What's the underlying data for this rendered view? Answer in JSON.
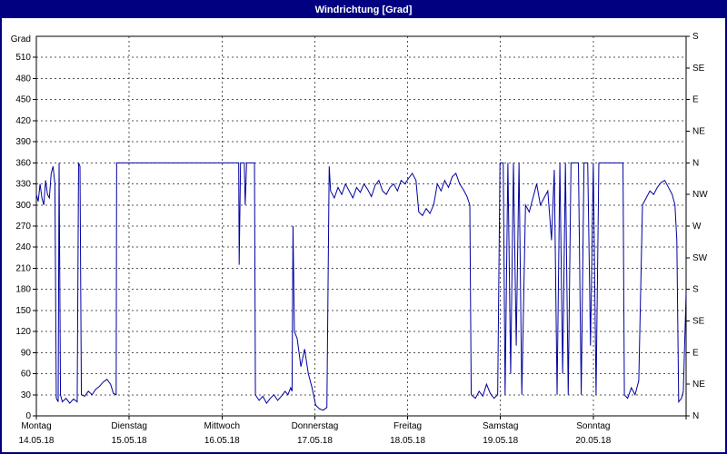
{
  "window": {
    "title": "Windrichtung [Grad]"
  },
  "colors": {
    "titlebar_bg": "#000080",
    "titlebar_text": "#ffffff",
    "frame": "#000080",
    "plot_border": "#000000",
    "grid": "#555555",
    "line": "#0000a0",
    "background": "#ffffff"
  },
  "chart_data": {
    "type": "line",
    "title": "Windrichtung [Grad]",
    "ylabel_left": "Grad",
    "y_min": 0,
    "y_max": 540,
    "left_tick_step": 30,
    "left_tick_labels": [
      "0",
      "30",
      "60",
      "90",
      "120",
      "150",
      "180",
      "210",
      "240",
      "270",
      "300",
      "330",
      "360",
      "390",
      "420",
      "450",
      "480",
      "510"
    ],
    "right_tick_step": 45,
    "right_tick_labels_bottom_to_top": [
      "N",
      "NE",
      "E",
      "SE",
      "S",
      "SW",
      "W",
      "NW",
      "N",
      "NE",
      "E",
      "SE",
      "S"
    ],
    "x_min": 0,
    "x_max": 7,
    "grid": "dashed",
    "x_day_labels": [
      {
        "name": "Montag",
        "date": "14.05.18"
      },
      {
        "name": "Dienstag",
        "date": "15.05.18"
      },
      {
        "name": "Mittwoch",
        "date": "16.05.18"
      },
      {
        "name": "Donnerstag",
        "date": "17.05.18"
      },
      {
        "name": "Freitag",
        "date": "18.05.18"
      },
      {
        "name": "Samstag",
        "date": "19.05.18"
      },
      {
        "name": "Sonntag",
        "date": "20.05.18"
      }
    ],
    "series": [
      {
        "name": "Windrichtung",
        "unit": "Grad",
        "points": [
          [
            0.0,
            315
          ],
          [
            0.02,
            305
          ],
          [
            0.04,
            330
          ],
          [
            0.06,
            310
          ],
          [
            0.08,
            300
          ],
          [
            0.1,
            335
          ],
          [
            0.12,
            315
          ],
          [
            0.14,
            310
          ],
          [
            0.16,
            345
          ],
          [
            0.18,
            355
          ],
          [
            0.2,
            330
          ],
          [
            0.215,
            25
          ],
          [
            0.235,
            20
          ],
          [
            0.245,
            360
          ],
          [
            0.26,
            30
          ],
          [
            0.28,
            20
          ],
          [
            0.32,
            25
          ],
          [
            0.36,
            18
          ],
          [
            0.4,
            24
          ],
          [
            0.44,
            20
          ],
          [
            0.455,
            360
          ],
          [
            0.47,
            355
          ],
          [
            0.485,
            30
          ],
          [
            0.52,
            28
          ],
          [
            0.56,
            35
          ],
          [
            0.6,
            30
          ],
          [
            0.64,
            38
          ],
          [
            0.68,
            42
          ],
          [
            0.72,
            48
          ],
          [
            0.76,
            52
          ],
          [
            0.8,
            45
          ],
          [
            0.83,
            32
          ],
          [
            0.86,
            30
          ],
          [
            0.865,
            360
          ],
          [
            1.0,
            360
          ],
          [
            1.3,
            360
          ],
          [
            1.6,
            360
          ],
          [
            1.9,
            360
          ],
          [
            2.17,
            360
          ],
          [
            2.18,
            360
          ],
          [
            2.185,
            215
          ],
          [
            2.2,
            360
          ],
          [
            2.24,
            360
          ],
          [
            2.25,
            300
          ],
          [
            2.265,
            360
          ],
          [
            2.35,
            360
          ],
          [
            2.36,
            30
          ],
          [
            2.4,
            22
          ],
          [
            2.44,
            28
          ],
          [
            2.48,
            18
          ],
          [
            2.52,
            25
          ],
          [
            2.56,
            30
          ],
          [
            2.6,
            22
          ],
          [
            2.64,
            28
          ],
          [
            2.68,
            35
          ],
          [
            2.71,
            30
          ],
          [
            2.74,
            40
          ],
          [
            2.755,
            35
          ],
          [
            2.765,
            270
          ],
          [
            2.78,
            120
          ],
          [
            2.81,
            110
          ],
          [
            2.85,
            70
          ],
          [
            2.89,
            95
          ],
          [
            2.93,
            60
          ],
          [
            2.97,
            40
          ],
          [
            3.01,
            15
          ],
          [
            3.05,
            10
          ],
          [
            3.09,
            8
          ],
          [
            3.13,
            12
          ],
          [
            3.155,
            355
          ],
          [
            3.17,
            320
          ],
          [
            3.21,
            310
          ],
          [
            3.25,
            325
          ],
          [
            3.29,
            315
          ],
          [
            3.33,
            330
          ],
          [
            3.37,
            320
          ],
          [
            3.41,
            310
          ],
          [
            3.45,
            325
          ],
          [
            3.49,
            318
          ],
          [
            3.53,
            330
          ],
          [
            3.57,
            322
          ],
          [
            3.61,
            312
          ],
          [
            3.65,
            328
          ],
          [
            3.69,
            335
          ],
          [
            3.73,
            320
          ],
          [
            3.77,
            315
          ],
          [
            3.81,
            325
          ],
          [
            3.85,
            330
          ],
          [
            3.89,
            320
          ],
          [
            3.93,
            335
          ],
          [
            3.97,
            330
          ],
          [
            4.01,
            338
          ],
          [
            4.05,
            345
          ],
          [
            4.09,
            335
          ],
          [
            4.12,
            290
          ],
          [
            4.16,
            285
          ],
          [
            4.2,
            295
          ],
          [
            4.24,
            288
          ],
          [
            4.28,
            300
          ],
          [
            4.32,
            330
          ],
          [
            4.36,
            320
          ],
          [
            4.4,
            335
          ],
          [
            4.44,
            325
          ],
          [
            4.48,
            340
          ],
          [
            4.52,
            345
          ],
          [
            4.56,
            330
          ],
          [
            4.6,
            322
          ],
          [
            4.64,
            312
          ],
          [
            4.67,
            300
          ],
          [
            4.685,
            30
          ],
          [
            4.73,
            25
          ],
          [
            4.77,
            35
          ],
          [
            4.81,
            28
          ],
          [
            4.85,
            45
          ],
          [
            4.89,
            32
          ],
          [
            4.93,
            25
          ],
          [
            4.97,
            30
          ],
          [
            4.995,
            360
          ],
          [
            5.03,
            360
          ],
          [
            5.05,
            30
          ],
          [
            5.08,
            360
          ],
          [
            5.11,
            60
          ],
          [
            5.14,
            360
          ],
          [
            5.17,
            100
          ],
          [
            5.2,
            360
          ],
          [
            5.23,
            30
          ],
          [
            5.27,
            300
          ],
          [
            5.31,
            290
          ],
          [
            5.35,
            310
          ],
          [
            5.39,
            330
          ],
          [
            5.43,
            300
          ],
          [
            5.47,
            310
          ],
          [
            5.51,
            320
          ],
          [
            5.55,
            250
          ],
          [
            5.58,
            350
          ],
          [
            5.61,
            30
          ],
          [
            5.64,
            360
          ],
          [
            5.67,
            60
          ],
          [
            5.7,
            360
          ],
          [
            5.73,
            30
          ],
          [
            5.76,
            360
          ],
          [
            5.8,
            360
          ],
          [
            5.84,
            360
          ],
          [
            5.87,
            30
          ],
          [
            5.9,
            360
          ],
          [
            5.94,
            360
          ],
          [
            5.97,
            100
          ],
          [
            6.0,
            360
          ],
          [
            6.03,
            30
          ],
          [
            6.06,
            360
          ],
          [
            6.1,
            360
          ],
          [
            6.16,
            360
          ],
          [
            6.22,
            360
          ],
          [
            6.28,
            360
          ],
          [
            6.32,
            360
          ],
          [
            6.335,
            30
          ],
          [
            6.37,
            25
          ],
          [
            6.41,
            40
          ],
          [
            6.45,
            30
          ],
          [
            6.49,
            50
          ],
          [
            6.53,
            300
          ],
          [
            6.57,
            310
          ],
          [
            6.61,
            320
          ],
          [
            6.65,
            315
          ],
          [
            6.69,
            325
          ],
          [
            6.73,
            332
          ],
          [
            6.77,
            335
          ],
          [
            6.81,
            325
          ],
          [
            6.85,
            315
          ],
          [
            6.88,
            300
          ],
          [
            6.9,
            250
          ],
          [
            6.92,
            20
          ],
          [
            6.95,
            25
          ],
          [
            6.97,
            35
          ],
          [
            7.0,
            175
          ]
        ]
      }
    ]
  }
}
